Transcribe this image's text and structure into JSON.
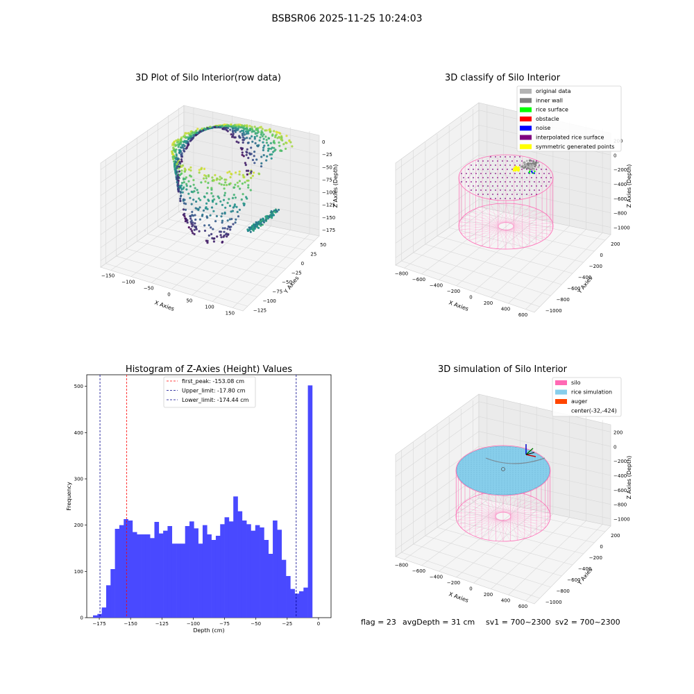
{
  "figure": {
    "suptitle": "BSBSR06 2025-11-25 10:24:03",
    "footer": {
      "flag": "flag = 23",
      "avg_depth": "avgDepth = 31 cm",
      "sv1": "sv1 = 700~2300",
      "sv2": "sv2 = 700~2300"
    }
  },
  "chart_data": [
    {
      "type": "scatter",
      "subtype": "3d",
      "title": "3D Plot of Silo Interior(row data)",
      "xlabel": "X Axies",
      "ylabel": "Y Axies",
      "zlabel": "Z Axies (Depth)",
      "x_ticks": [
        "−150",
        "−100",
        "−50",
        "0",
        "50",
        "100",
        "150"
      ],
      "y_ticks": [
        "−125",
        "−100",
        "−75",
        "−50",
        "−25",
        "0",
        "25",
        "50"
      ],
      "z_ticks": [
        "0",
        "−25",
        "−50",
        "−75",
        "−100",
        "−125",
        "−150",
        "−175"
      ],
      "colormap": "viridis",
      "grid": true
    },
    {
      "type": "scatter",
      "subtype": "3d",
      "title": "3D classify of Silo Interior",
      "xlabel": "X Axies",
      "ylabel": "Y Axies",
      "zlabel": "Z Axies (Depth)",
      "x_ticks": [
        "−800",
        "−600",
        "−400",
        "−200",
        "0",
        "200",
        "400",
        "600"
      ],
      "y_ticks": [
        "−1000",
        "−800",
        "−600",
        "−400",
        "−200",
        "0",
        "200"
      ],
      "z_ticks": [
        "200",
        "0",
        "−200",
        "−400",
        "−600",
        "−800",
        "−1000"
      ],
      "legend_position": "top-right",
      "legend": [
        {
          "label": "original data",
          "color": "#b3b3b3"
        },
        {
          "label": "inner wall",
          "color": "#808080"
        },
        {
          "label": "rice surface",
          "color": "#00ff00"
        },
        {
          "label": "obstacle",
          "color": "#ff0000"
        },
        {
          "label": "noise",
          "color": "#0000ff"
        },
        {
          "label": "interpolated rice surface",
          "color": "#800080"
        },
        {
          "label": "symmetric generated points",
          "color": "#ffff00"
        }
      ],
      "grid": true
    },
    {
      "type": "bar",
      "subtype": "histogram",
      "title": "Histogram of Z-Axies (Height) Values",
      "xlabel": "Depth (cm)",
      "ylabel": "Frequency",
      "xlim": [
        -185,
        10
      ],
      "ylim": [
        0,
        525
      ],
      "x_ticks": [
        -175,
        -150,
        -125,
        -100,
        -75,
        -50,
        -25,
        0
      ],
      "x_tick_labels": [
        "−175",
        "−150",
        "−125",
        "−100",
        "−75",
        "−50",
        "−25",
        "0"
      ],
      "y_ticks": [
        0,
        100,
        200,
        300,
        400,
        500
      ],
      "bar_color": "#4949ff",
      "bin_width": 3.5,
      "bins_left_edge_start": -180,
      "values": [
        5,
        8,
        22,
        70,
        105,
        192,
        200,
        213,
        210,
        185,
        180,
        180,
        180,
        172,
        207,
        182,
        188,
        198,
        160,
        160,
        160,
        198,
        208,
        193,
        160,
        200,
        180,
        168,
        177,
        202,
        217,
        208,
        262,
        230,
        210,
        202,
        188,
        200,
        195,
        168,
        138,
        210,
        190,
        125,
        90,
        62,
        52,
        57,
        65,
        502
      ],
      "vlines": [
        {
          "label": "first_peak: -153.08 cm",
          "x": -153.08,
          "color": "#ff0000"
        },
        {
          "label": "Upper_limit: -17.80 cm",
          "x": -17.8,
          "color": "#00008b"
        },
        {
          "label": "Lower_limit: -174.44 cm",
          "x": -174.44,
          "color": "#00008b"
        }
      ],
      "legend_position": "top-center"
    },
    {
      "type": "scatter",
      "subtype": "3d",
      "title": "3D simulation of Silo Interior",
      "xlabel": "X Axies",
      "ylabel": "Y Axies",
      "zlabel": "Z Axies (Depth)",
      "x_ticks": [
        "−800",
        "−600",
        "−400",
        "−200",
        "0",
        "200",
        "400",
        "600"
      ],
      "y_ticks": [
        "−1000",
        "−800",
        "−600",
        "−400",
        "−200",
        "0",
        "200"
      ],
      "z_ticks": [
        "200",
        "0",
        "−200",
        "−400",
        "−600",
        "−800",
        "−1000"
      ],
      "legend_position": "top-right",
      "legend": [
        {
          "label": "silo",
          "color": "#ff69b4"
        },
        {
          "label": "rice simulation",
          "color": "#87ceeb"
        },
        {
          "label": "auger",
          "color": "#ff4500"
        },
        {
          "label": "center(-32,-424)",
          "color": ""
        }
      ],
      "grid": true
    }
  ]
}
